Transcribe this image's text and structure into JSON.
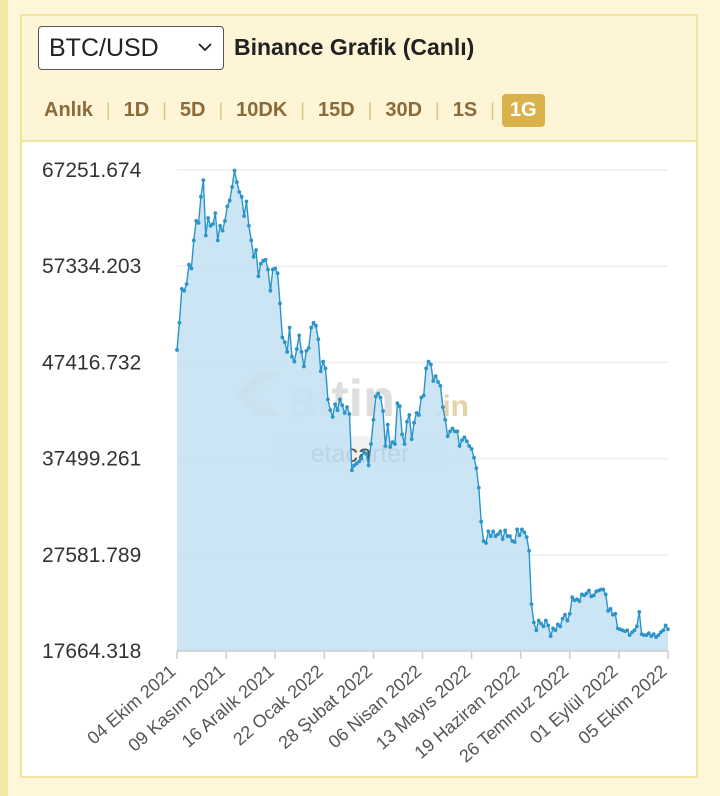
{
  "header": {
    "pair_value": "BTC/USD",
    "title": "Binance Grafik (Canlı)",
    "tabs": [
      {
        "label": "Anlık",
        "active": false
      },
      {
        "label": "1D",
        "active": false
      },
      {
        "label": "5D",
        "active": false
      },
      {
        "label": "10DK",
        "active": false
      },
      {
        "label": "15D",
        "active": false
      },
      {
        "label": "30D",
        "active": false
      },
      {
        "label": "1S",
        "active": false
      },
      {
        "label": "1G",
        "active": true
      }
    ]
  },
  "watermark": {
    "logo_text": "altin",
    "logo_suffix": ".in",
    "user": "etacarter"
  },
  "colors": {
    "line": "#2b94c9",
    "fill": "#c7e2f4",
    "active_tab": "#d9b24c",
    "tab_text": "#8b6b3a"
  },
  "chart_data": {
    "type": "area",
    "title": "",
    "xlabel": "",
    "ylabel": "",
    "ylim": [
      17664.318,
      67251.674
    ],
    "y_ticks": [
      "67251.674",
      "57334.203",
      "47416.732",
      "37499.261",
      "27581.789",
      "17664.318"
    ],
    "x_ticks": [
      "04 Ekim 2021",
      "09 Kasım 2021",
      "16 Aralık 2021",
      "22 Ocak 2022",
      "28 Şubat 2022",
      "06 Nisan 2022",
      "13 Mayıs 2022",
      "19 Haziran 2022",
      "26 Temmuz 2022",
      "01 Eylül 2022",
      "05 Ekim 2022"
    ],
    "grid": true,
    "series": [
      {
        "values": [
          48700,
          51500,
          55000,
          54800,
          55500,
          57500,
          57100,
          60000,
          62000,
          61800,
          64500,
          66200,
          60500,
          62300,
          61500,
          61700,
          62800,
          60000,
          61500,
          61000,
          62000,
          63500,
          64100,
          65500,
          67200,
          66000,
          65000,
          64500,
          62500,
          64000,
          61500,
          60000,
          58300,
          59000,
          56300,
          57600,
          57900,
          58000,
          57000,
          54800,
          57000,
          57100,
          56600,
          53500,
          50000,
          49500,
          48500,
          51000,
          48000,
          47500,
          48800,
          50200,
          48500,
          47000,
          48600,
          48900,
          51000,
          51500,
          51200,
          49800,
          46500,
          47500,
          46800,
          43600,
          42500,
          41800,
          43100,
          42500,
          43600,
          43000,
          42200,
          42800,
          42100,
          36300,
          36800,
          37000,
          37200,
          37500,
          38200,
          38000,
          36800,
          39000,
          41500,
          43900,
          44200,
          43800,
          42400,
          38800,
          41000,
          38700,
          39200,
          39000,
          43200,
          42900,
          40000,
          39000,
          41300,
          42000,
          39500,
          41200,
          42200,
          42000,
          43800,
          44000,
          46800,
          47500,
          47200,
          45500,
          46000,
          45400,
          45000,
          42800,
          41500,
          39800,
          40300,
          40600,
          40300,
          40300,
          38800,
          39400,
          39700,
          39300,
          38800,
          38500,
          37600,
          36500,
          34500,
          31000,
          29000,
          28800,
          30000,
          29500,
          30000,
          29500,
          29700,
          30000,
          29200,
          30100,
          29500,
          29500,
          29000,
          28900,
          30200,
          29600,
          30200,
          29900,
          29400,
          28000,
          22500,
          20600,
          19800,
          20800,
          20500,
          20200,
          20800,
          20300,
          19200,
          20000,
          19800,
          20400,
          20200,
          21000,
          21400,
          20800,
          21500,
          23200,
          22900,
          23000,
          22800,
          23500,
          23400,
          23600,
          23900,
          23300,
          23400,
          23800,
          23900,
          24000,
          24000,
          23500,
          21800,
          22000,
          21400,
          21500,
          20000,
          19900,
          19800,
          19700,
          19800,
          19300,
          19600,
          19800,
          20200,
          21700,
          19400,
          19300,
          19300,
          19500,
          19200,
          19400,
          19100,
          19300,
          19600,
          19800,
          20300,
          19900
        ]
      }
    ]
  }
}
